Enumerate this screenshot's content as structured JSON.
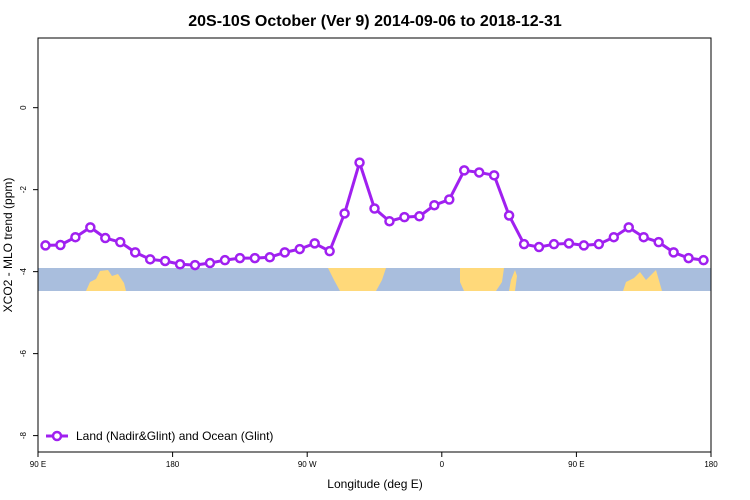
{
  "chart_data": {
    "type": "line",
    "title": "20S-10S October (Ver 9)   2014-09-06 to 2018-12-31",
    "x_label": "Longitude (deg E)",
    "y_label": "XCO2 - MLO trend (ppm)",
    "x": [
      95,
      105,
      115,
      125,
      135,
      145,
      155,
      165,
      175,
      185,
      195,
      205,
      215,
      225,
      235,
      245,
      255,
      265,
      275,
      285,
      295,
      305,
      315,
      325,
      335,
      345,
      355,
      365,
      375,
      385,
      395,
      405,
      415,
      425,
      435,
      445,
      455,
      465,
      475,
      485,
      495,
      505,
      515,
      525,
      535
    ],
    "series": [
      {
        "name": "Land (Nadir&Glint) and Ocean (Glint)",
        "color": "#a020f0",
        "values": [
          -3.36,
          -3.35,
          -3.16,
          -2.92,
          -3.18,
          -3.28,
          -3.53,
          -3.7,
          -3.74,
          -3.82,
          -3.84,
          -3.79,
          -3.72,
          -3.67,
          -3.67,
          -3.65,
          -3.53,
          -3.45,
          -3.31,
          -3.5,
          -2.58,
          -1.34,
          -2.46,
          -2.77,
          -2.67,
          -2.65,
          -2.38,
          -2.24,
          -1.53,
          -1.58,
          -1.65,
          -2.63,
          -3.33,
          -3.4,
          -3.33,
          -3.31,
          -3.36,
          -3.33,
          -3.16,
          -2.92,
          -3.16,
          -3.28,
          -3.53,
          -3.67,
          -3.72
        ]
      }
    ],
    "xlim": [
      90,
      540
    ],
    "ylim": [
      -8.4,
      1.7
    ],
    "xticks": [
      {
        "value": 90,
        "label": "90 E"
      },
      180,
      {
        "value": 270,
        "label": "90 W"
      },
      {
        "value": 360,
        "label": "0"
      },
      {
        "value": 450,
        "label": "90 E"
      },
      {
        "value": 540,
        "label": "180"
      }
    ],
    "yticks": [
      0,
      -2,
      -4,
      -6,
      -8
    ],
    "legend": "bottom-left"
  }
}
